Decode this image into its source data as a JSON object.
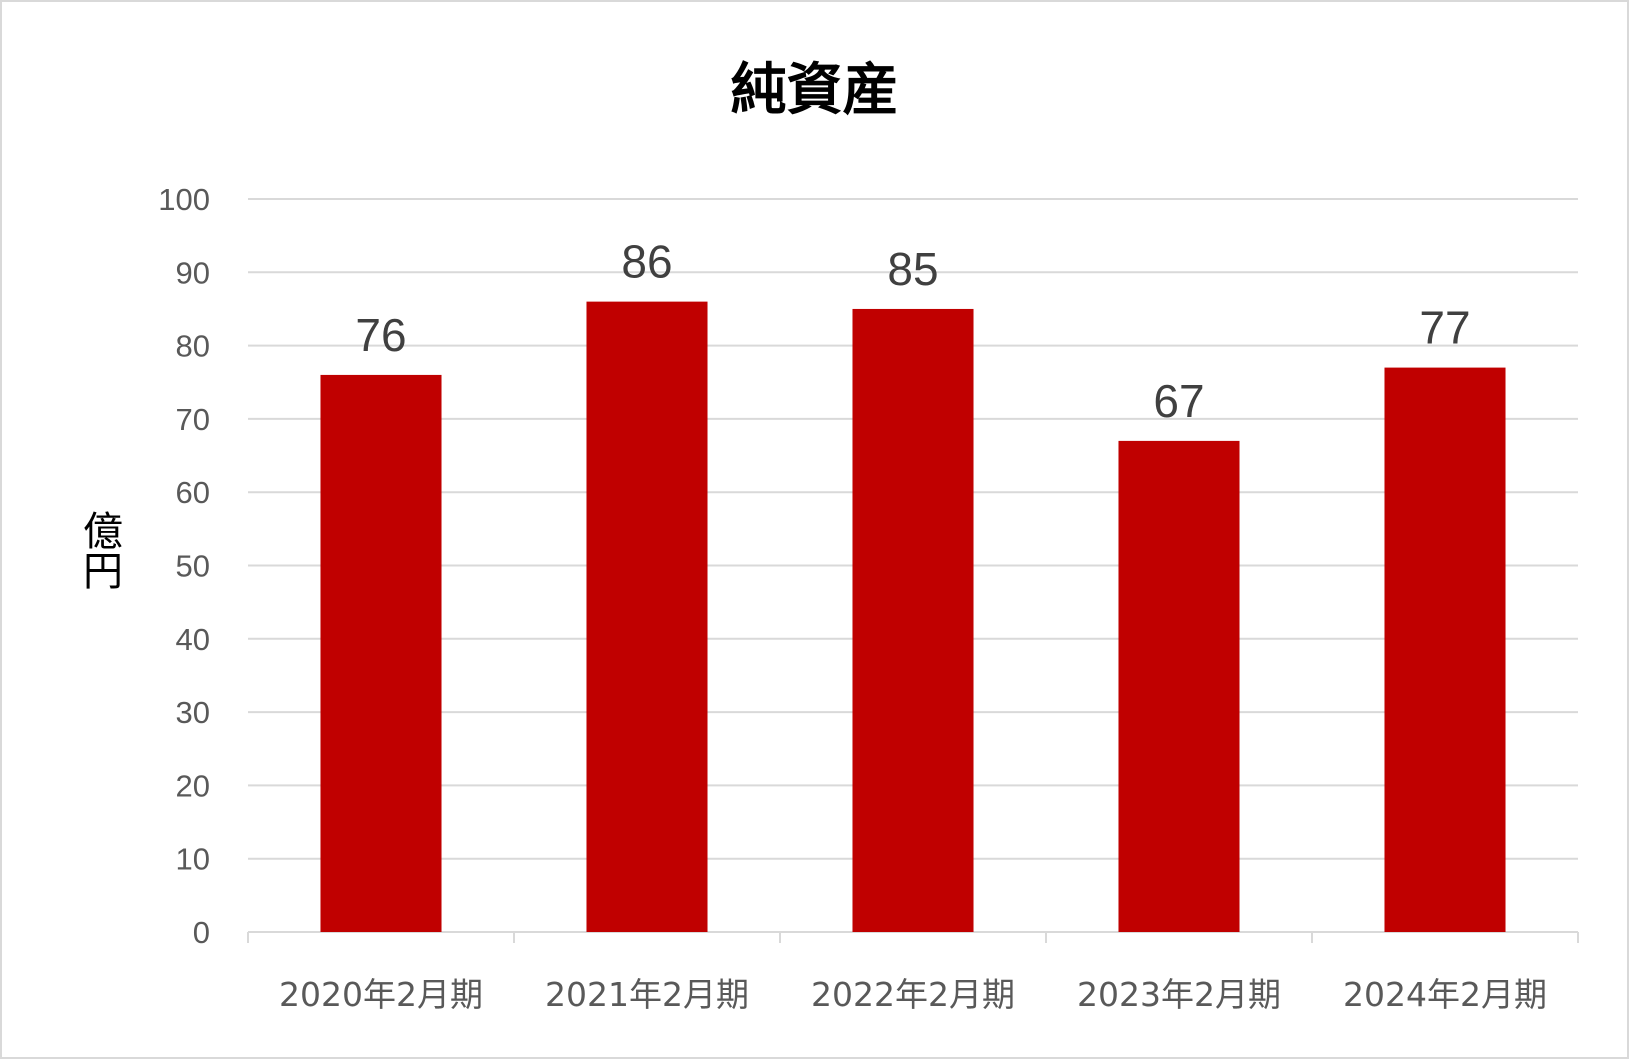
{
  "chart_data": {
    "type": "bar",
    "title": "純資産",
    "ylabel": "億円",
    "xlabel": "",
    "categories": [
      "2020年2月期",
      "2021年2月期",
      "2022年2月期",
      "2023年2月期",
      "2024年2月期"
    ],
    "values": [
      76,
      86,
      85,
      67,
      77
    ],
    "data_labels": [
      "76",
      "86",
      "85",
      "67",
      "77"
    ],
    "ylim": [
      0,
      100
    ],
    "yticks": [
      0,
      10,
      20,
      30,
      40,
      50,
      60,
      70,
      80,
      90,
      100
    ],
    "grid": true,
    "legend": "none",
    "bar_color": "#c00000",
    "grid_color": "#d9d9d9"
  }
}
